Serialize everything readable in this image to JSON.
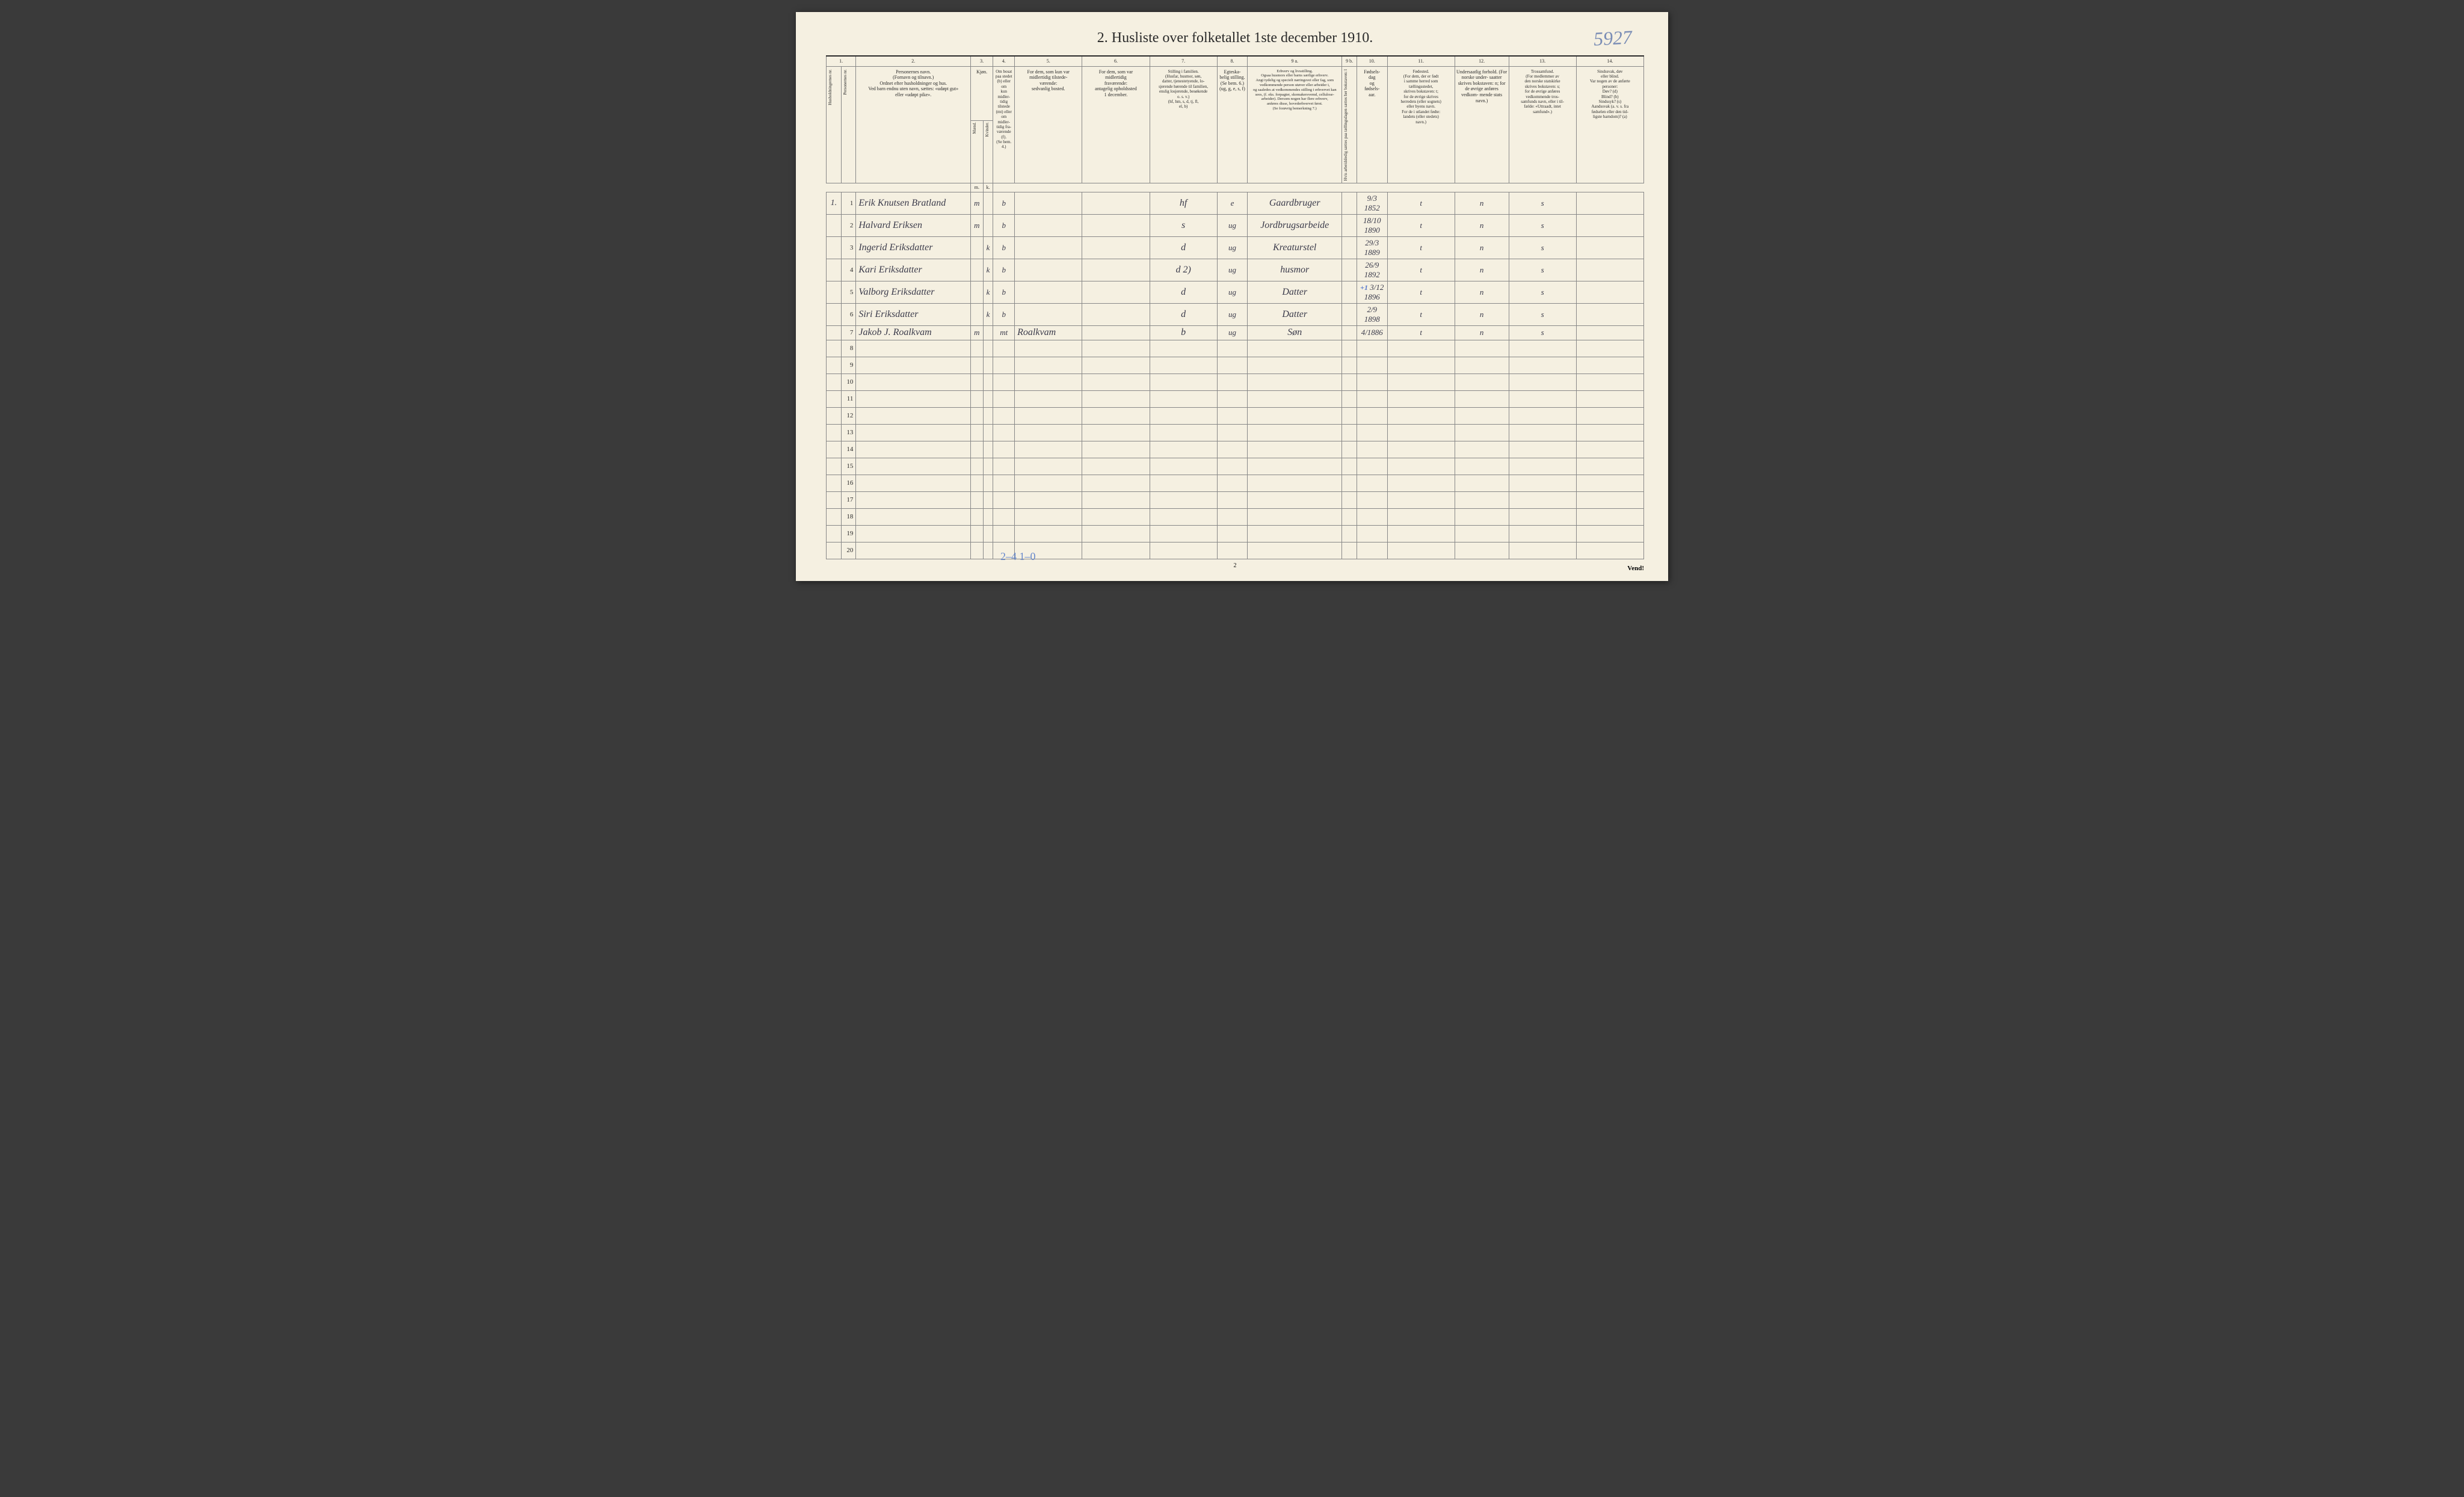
{
  "page": {
    "handwritten_number": "5927",
    "title": "2. Husliste over folketallet 1ste december 1910.",
    "footer_page": "2",
    "footer_tally": "2–4    1–0",
    "vend": "Vend!"
  },
  "columns": {
    "nums": [
      "1.",
      "2.",
      "3.",
      "4.",
      "5.",
      "6.",
      "7.",
      "8.",
      "9 a.",
      "9 b.",
      "10.",
      "11.",
      "12.",
      "13.",
      "14."
    ],
    "h1": "Husholdningernes nr.",
    "h1b": "Personernes nr.",
    "h2": "Personernes navn.\n(Fornavn og tilnavn.)\nOrdnet efter husholdninger og hus.\nVed barn endnu uten navn, sættes: «udøpt gut»\neller «udøpt pike».",
    "h3": "Kjøn.",
    "h3sub": "Kvinder.",
    "h3a": "Mænd.",
    "h3mk_m": "m.",
    "h3mk_k": "k.",
    "h4": "Om bosat\npaa stedet\n(b) eller om\nkun midler-\ntidig tilstede\n(mt) eller\nom midler-\ntidig fra-\nværende (f).\n(Se bem. 4.)",
    "h5": "For dem, som kun var\nmidlertidig tilstede-\nværende:\nsedvanlig bosted.",
    "h6": "For dem, som var\nmidlertidig\nfraværende:\nantagelig opholdssted\n1 december.",
    "h7": "Stilling i familien.\n(Husfar, husmor, søn,\ndatter, tjenestetyende, lo-\nsjerende hørende til familien,\nenslig losjerende, besøkende\no. s. v.)\n(hf, hm, s, d, tj, fl,\nel, b)",
    "h8": "Egteska-\nbelig\nstilling.\n(Se bem. 6.)\n(ug, g,\ne, s, f)",
    "h9a": "Erhverv og livsstilling.\nOgsaa husmors eller barns særlige erhverv.\nAngi tydelig og specielt næringsvei eller fag, som\nvedkommende person utøver eller arbeider i,\nog saaledes at vedkommendes stilling i erhvervet kan\nsees, (f. eks. forpagter, skomakersvemd, cellulose-\narbeider). Dersom nogen har flere erhverv,\nanføres disse, hovederhvervet først.\n(Se forøvrig bemerkning 7.)",
    "h9b": "Hvis arbeidsledig sættes\npaa tællingsdagen sættes\nher bokstaven: l",
    "h10": "Fødsels-\ndag\nog\nfødsels-\naar.",
    "h11": "Fødested.\n(For dem, der er født\ni samme herred som\ntællingsstedet,\nskrives bokstaven: t;\nfor de øvrige skrives\nherredets (eller sognets)\neller byens navn.\nFor de i utlandet fødte:\nlandets (eller stedets)\nnavn.)",
    "h12": "Undersaatlig\nforhold.\n(For norske under-\nsaatter skrives\nbokstaven: n;\nfor de øvrige\nanføres vedkom-\nmende stats navn.)",
    "h13": "Trossamfund.\n(For medlemmer av\nden norske statskirke\nskrives bokstaven: s;\nfor de øvrige anføres\nvedkommende tros-\nsamfunds navn, eller i til-\nfælde: «Uttraadt, intet\nsamfund».)",
    "h14": "Sindssvak, døv\neller blind.\nVar nogen av de anførte\npersoner:\nDøv? (d)\nBlind? (b)\nSindssyk? (s)\nAandssvak (a. v. s. fra\nfødselen eller den tid-\nligste barndom)? (a)"
  },
  "rows": [
    {
      "hh": "1.",
      "pn": "1",
      "name": "Erik Knutsen Bratland",
      "m": "m",
      "k": "",
      "bosat": "b",
      "sedv": "",
      "frav": "",
      "stilling": "hf",
      "egte": "e",
      "erhverv": "Gaardbruger",
      "led": "",
      "fdato": "9/3 1852",
      "fsted": "t",
      "under": "n",
      "tros": "s",
      "sinds": ""
    },
    {
      "hh": "",
      "pn": "2",
      "name": "Halvard Eriksen",
      "m": "m",
      "k": "",
      "bosat": "b",
      "sedv": "",
      "frav": "",
      "stilling": "s",
      "egte": "ug",
      "erhverv": "Jordbrugsarbeide",
      "led": "",
      "fdato": "18/10 1890",
      "fsted": "t",
      "under": "n",
      "tros": "s",
      "sinds": ""
    },
    {
      "hh": "",
      "pn": "3",
      "name": "Ingerid Eriksdatter",
      "m": "",
      "k": "k",
      "bosat": "b",
      "sedv": "",
      "frav": "",
      "stilling": "d",
      "egte": "ug",
      "erhverv": "Kreaturstel",
      "led": "",
      "fdato": "29/3 1889",
      "fsted": "t",
      "under": "n",
      "tros": "s",
      "sinds": ""
    },
    {
      "hh": "",
      "pn": "4",
      "name": "Kari Eriksdatter",
      "m": "",
      "k": "k",
      "bosat": "b",
      "sedv": "",
      "frav": "",
      "stilling": "d       2)",
      "egte": "ug",
      "erhverv": "husmor",
      "led": "",
      "fdato": "26/9 1892",
      "fsted": "t",
      "under": "n",
      "tros": "s",
      "sinds": ""
    },
    {
      "hh": "",
      "pn": "5",
      "name": "Valborg Eriksdatter",
      "m": "",
      "k": "k",
      "bosat": "b",
      "sedv": "",
      "frav": "",
      "stilling": "d",
      "egte": "ug",
      "erhverv": "Datter",
      "led": "",
      "fdato": "3/12 1896",
      "fsted": "t",
      "under": "n",
      "tros": "s",
      "sinds": "",
      "cross": "+1"
    },
    {
      "hh": "",
      "pn": "6",
      "name": "Siri Eriksdatter",
      "m": "",
      "k": "k",
      "bosat": "b",
      "sedv": "",
      "frav": "",
      "stilling": "d",
      "egte": "ug",
      "erhverv": "Datter",
      "led": "",
      "fdato": "2/9 1898",
      "fsted": "t",
      "under": "n",
      "tros": "s",
      "sinds": ""
    },
    {
      "hh": "",
      "pn": "7",
      "name": "Jakob J. Roalkvam",
      "m": "m",
      "k": "",
      "bosat": "mt",
      "sedv": "Roalkvam",
      "frav": "",
      "stilling": "b",
      "egte": "ug",
      "erhverv": "Søn",
      "led": "",
      "fdato": "4/1886",
      "fsted": "t",
      "under": "n",
      "tros": "s",
      "sinds": ""
    }
  ],
  "empty_rows": [
    "8",
    "9",
    "10",
    "11",
    "12",
    "13",
    "14",
    "15",
    "16",
    "17",
    "18",
    "19",
    "20"
  ]
}
